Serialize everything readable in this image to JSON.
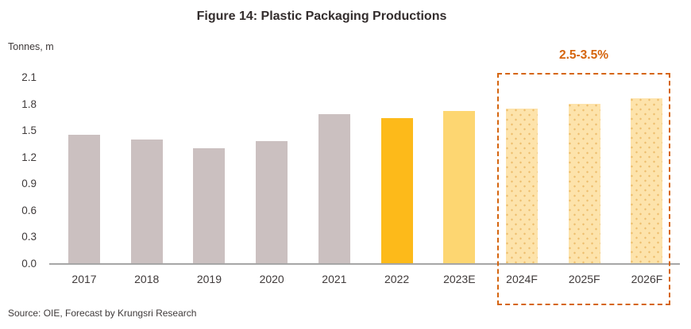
{
  "header": {
    "title": "Figure 14: Plastic Packaging Productions"
  },
  "axis_unit_label": "Tonnes, m",
  "annotation": {
    "growth_label": "2.5-3.5%"
  },
  "footer": {
    "source": "Source: OIE, Forecast by Krungsri Research"
  },
  "colors": {
    "historical_bar": "#CBC0C0",
    "actual_2022_bar": "#FDBA1A",
    "estimate_bar": "#FDD671",
    "forecast_bar_fill": "#FDE3AB",
    "forecast_bar_dots": "#EDBE6E",
    "forecast_box_border": "#D5650F",
    "annotation_text": "#D5650F",
    "axis_line": "#A6A6A6",
    "text": "#3F3A3A"
  },
  "chart_data": {
    "type": "bar",
    "title": "Figure 14: Plastic Packaging Productions",
    "xlabel": "",
    "ylabel": "Tonnes, m",
    "categories": [
      "2017",
      "2018",
      "2019",
      "2020",
      "2021",
      "2022",
      "2023E",
      "2024F",
      "2025F",
      "2026F"
    ],
    "values": [
      1.47,
      1.41,
      1.31,
      1.39,
      1.7,
      1.65,
      1.73,
      1.76,
      1.81,
      1.88
    ],
    "bar_styles": [
      "historical",
      "historical",
      "historical",
      "historical",
      "historical",
      "actual",
      "estimate",
      "forecast",
      "forecast",
      "forecast"
    ],
    "ylim": [
      0,
      2.1
    ],
    "yticks": [
      2.1,
      1.8,
      1.5,
      1.2,
      0.9,
      0.6,
      0.3,
      0.0
    ],
    "grid": false,
    "legend": "none",
    "forecast_annotation": {
      "label": "2.5-3.5%",
      "applies_to": [
        "2024F",
        "2025F",
        "2026F"
      ]
    }
  }
}
